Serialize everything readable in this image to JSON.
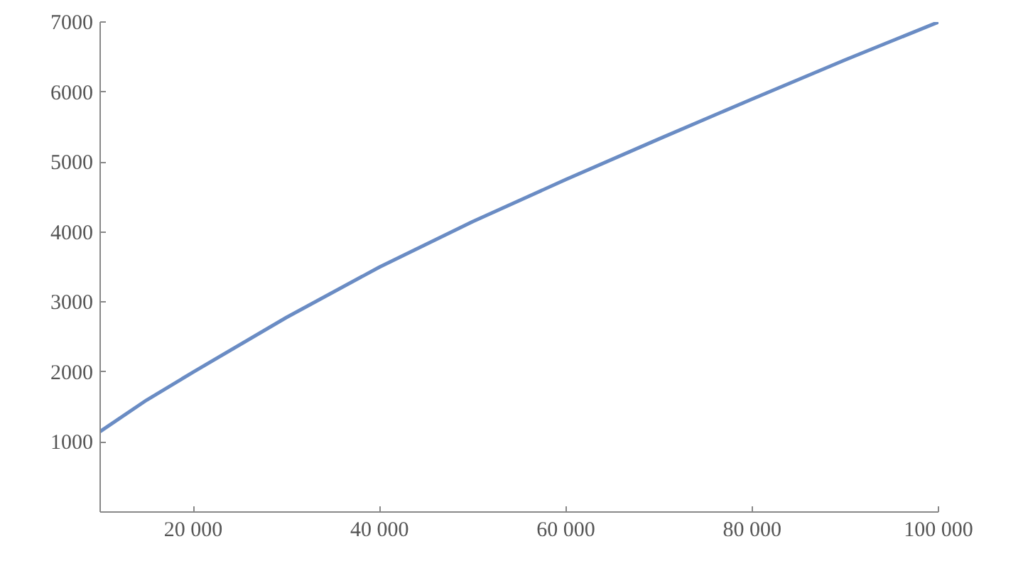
{
  "chart_data": {
    "type": "line",
    "x": [
      10000,
      15000,
      20000,
      30000,
      40000,
      50000,
      60000,
      70000,
      80000,
      90000,
      100000
    ],
    "series": [
      {
        "color": "#6a8cc4",
        "values": [
          1150,
          1600,
          2000,
          2780,
          3500,
          4150,
          4750,
          5330,
          5900,
          6460,
          7000
        ]
      }
    ],
    "xlim": [
      10000,
      100000
    ],
    "ylim": [
      0,
      7000
    ],
    "xticks": [
      {
        "value": 20000,
        "label": "20 000"
      },
      {
        "value": 40000,
        "label": "40 000"
      },
      {
        "value": 60000,
        "label": "60 000"
      },
      {
        "value": 80000,
        "label": "80 000"
      },
      {
        "value": 100000,
        "label": "100 000"
      }
    ],
    "yticks": [
      1000,
      2000,
      3000,
      4000,
      5000,
      6000,
      7000
    ],
    "grid": false,
    "marker": "none",
    "line_style": "solid"
  }
}
